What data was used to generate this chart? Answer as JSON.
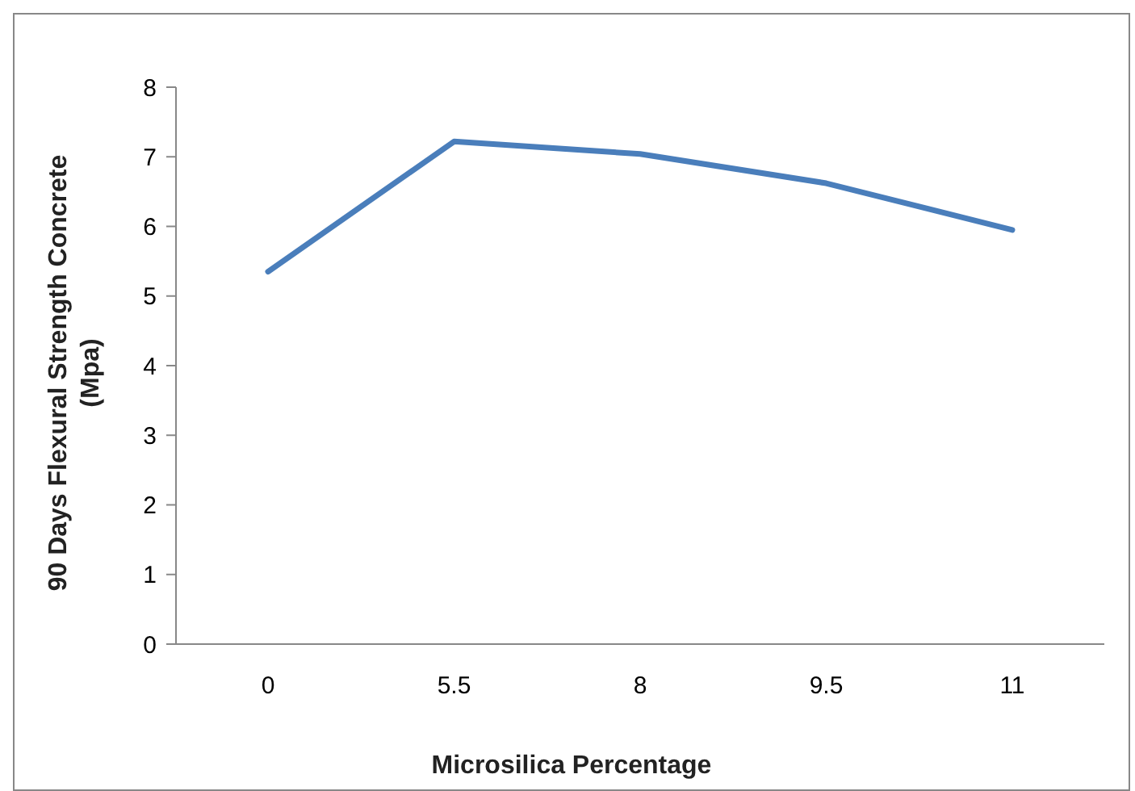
{
  "chart_data": {
    "type": "line",
    "xlabel": "Microsilica Percentage",
    "ylabel": "90 Days Flexural Strength Concrete (Mpa)",
    "categories": [
      "0",
      "5.5",
      "8",
      "9.5",
      "11"
    ],
    "series": [
      {
        "color": "#4a7ebb",
        "values": [
          5.35,
          7.22,
          7.04,
          6.62,
          5.95
        ]
      }
    ],
    "ylim": [
      0,
      8
    ],
    "yticks": [
      0,
      1,
      2,
      3,
      4,
      5,
      6,
      7,
      8
    ],
    "marker": "none",
    "line_style": "solid"
  }
}
